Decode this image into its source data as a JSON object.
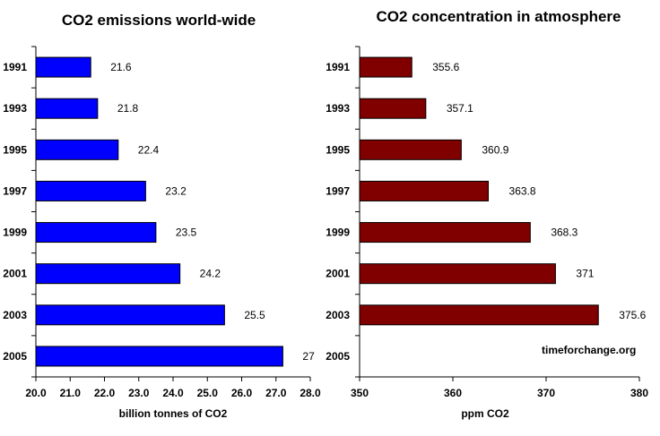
{
  "chart_data": [
    {
      "type": "bar",
      "orientation": "horizontal",
      "title": "CO2 emissions world-wide",
      "xlabel": "billion tonnes of CO2",
      "ylabel": "",
      "categories": [
        "1991",
        "1993",
        "1995",
        "1997",
        "1999",
        "2001",
        "2003",
        "2005"
      ],
      "values": [
        21.6,
        21.8,
        22.4,
        23.2,
        23.5,
        24.2,
        25.5,
        27.2
      ],
      "value_labels": [
        "21.6",
        "21.8",
        "22.4",
        "23.2",
        "23.5",
        "24.2",
        "25.5",
        "27"
      ],
      "xlim": [
        20.0,
        28.0
      ],
      "xticks": [
        "20.0",
        "21.0",
        "22.0",
        "23.0",
        "24.0",
        "25.0",
        "26.0",
        "27.0",
        "28.0"
      ],
      "color": "#0000ff",
      "grid": false,
      "legend": "none"
    },
    {
      "type": "bar",
      "orientation": "horizontal",
      "title": "CO2 concentration in atmosphere",
      "xlabel": "ppm CO2",
      "ylabel": "",
      "categories": [
        "1991",
        "1993",
        "1995",
        "1997",
        "1999",
        "2001",
        "2003",
        "2005"
      ],
      "values": [
        355.6,
        357.1,
        360.9,
        363.8,
        368.3,
        371,
        375.6,
        null
      ],
      "value_labels": [
        "355.6",
        "357.1",
        "360.9",
        "363.8",
        "368.3",
        "371",
        "375.6",
        ""
      ],
      "xlim": [
        350,
        380
      ],
      "xticks": [
        "350",
        "360",
        "370",
        "380"
      ],
      "color": "#800000",
      "grid": false,
      "legend": "none",
      "annotation": "timeforchange.org"
    }
  ]
}
